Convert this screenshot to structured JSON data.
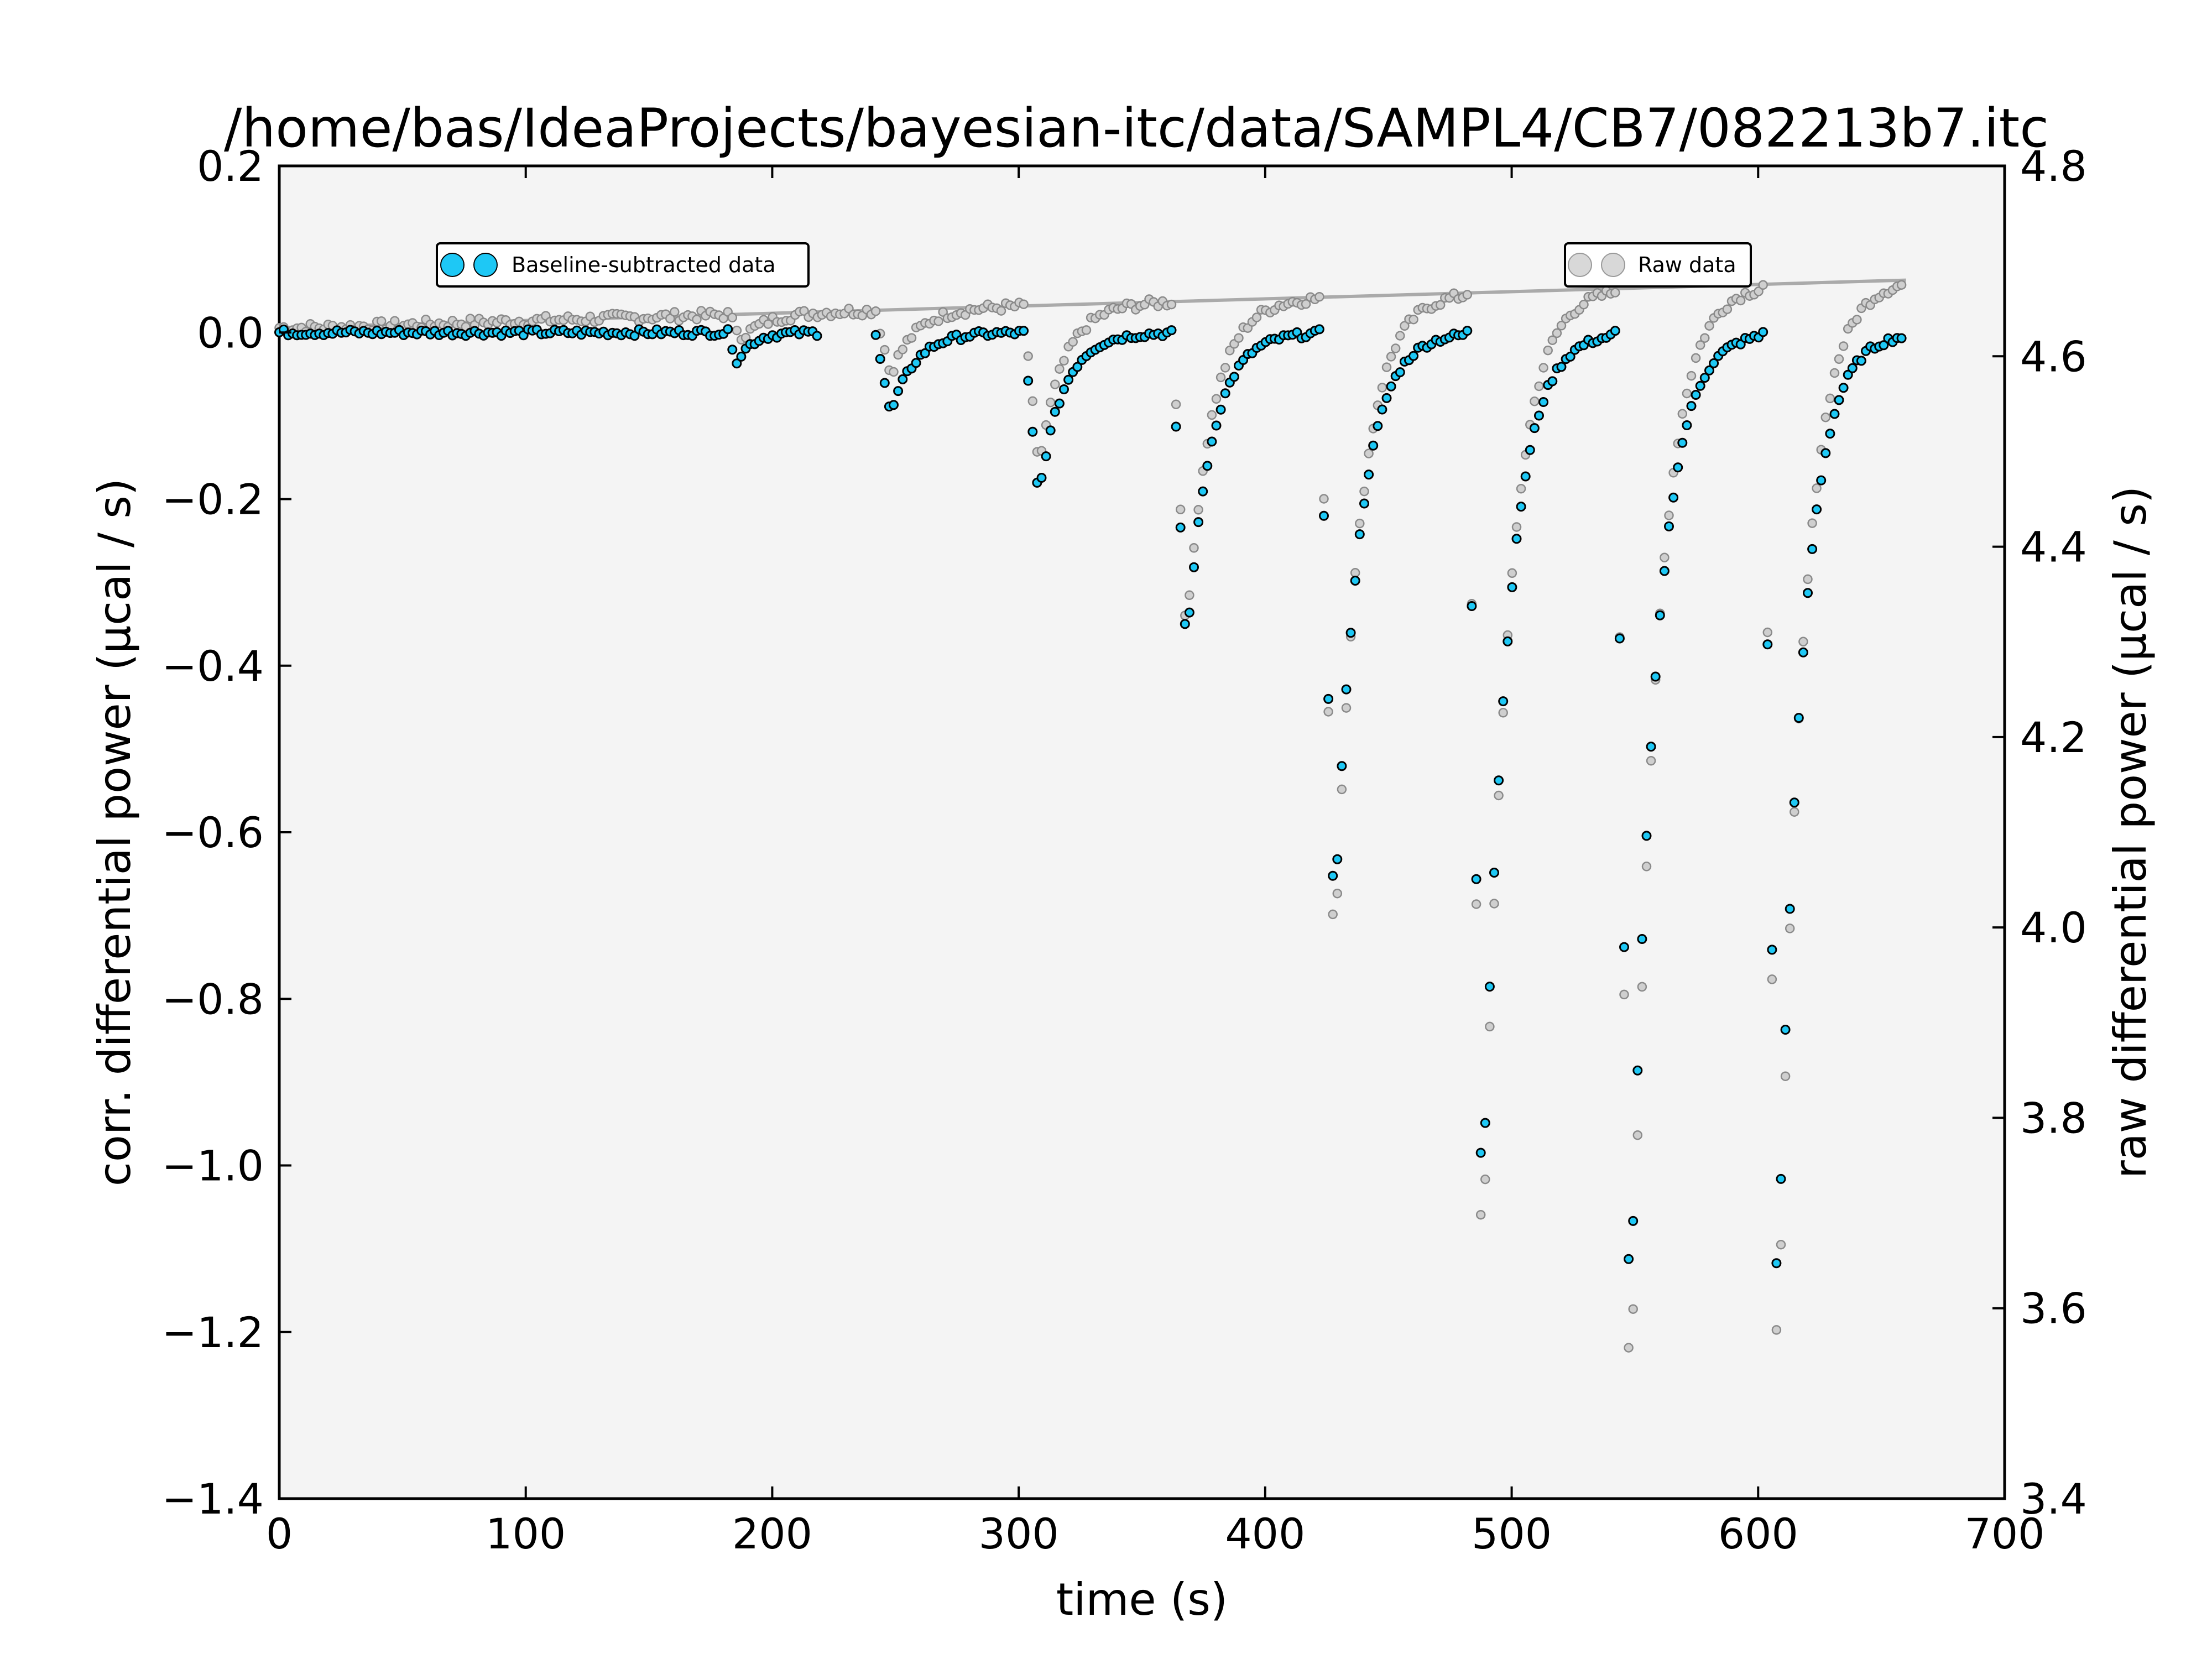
{
  "chart_data": {
    "type": "scatter",
    "title": "/home/bas/IdeaProjects/bayesian-itc/data/SAMPL4/CB7/082213b7.itc",
    "xlabel": "time (s)",
    "ylabel_left": "corr. differential power (µcal / s)",
    "ylabel_right": "raw differential power (µcal / s)",
    "xlim": [
      0,
      700
    ],
    "ylim_left": [
      -1.4,
      0.2
    ],
    "ylim_right": [
      3.4,
      4.8
    ],
    "x_ticks": [
      "0",
      "100",
      "200",
      "300",
      "400",
      "500",
      "600",
      "700"
    ],
    "y_left_ticks": [
      "0.2",
      "0.0",
      "−0.2",
      "−0.4",
      "−0.6",
      "−0.8",
      "−1.0",
      "−1.2",
      "−1.4"
    ],
    "y_right_ticks": [
      "4.8",
      "4.6",
      "4.4",
      "4.2",
      "4.0",
      "3.8",
      "3.6",
      "3.4"
    ],
    "grid": false,
    "series": [
      {
        "name": "Baseline-subtracted data",
        "axis": "left",
        "color": "#1ec8f5",
        "segments": [
          {
            "start": 0,
            "end": 182,
            "base": 0.0,
            "peak": 0.0
          },
          {
            "start": 182,
            "end": 220,
            "base": 0.0,
            "peak": -0.035
          },
          {
            "start": 242,
            "end": 302,
            "base": 0.0,
            "peak": -0.1
          },
          {
            "start": 302,
            "end": 362,
            "base": 0.0,
            "peak": -0.2
          },
          {
            "start": 362,
            "end": 422,
            "base": 0.0,
            "peak": -0.385
          },
          {
            "start": 422,
            "end": 482,
            "base": 0.0,
            "peak": -0.72
          },
          {
            "start": 482,
            "end": 542,
            "base": 0.0,
            "peak": -1.08
          },
          {
            "start": 542,
            "end": 602,
            "base": 0.0,
            "peak": -1.22
          },
          {
            "start": 602,
            "end": 660,
            "base": 0.0,
            "peak": -1.19
          }
        ]
      },
      {
        "name": "Raw data",
        "axis": "right",
        "color": "#aaaaaa",
        "baseline_start": 4.63,
        "baseline_end": 4.68,
        "segments": [
          {
            "start": 0,
            "end": 182,
            "peak": 4.63
          },
          {
            "start": 182,
            "end": 242,
            "peak": 4.62
          },
          {
            "start": 242,
            "end": 302,
            "peak": 4.58
          },
          {
            "start": 302,
            "end": 362,
            "peak": 4.48
          },
          {
            "start": 362,
            "end": 422,
            "peak": 4.3
          },
          {
            "start": 422,
            "end": 482,
            "peak": 3.95
          },
          {
            "start": 482,
            "end": 542,
            "peak": 3.6
          },
          {
            "start": 542,
            "end": 602,
            "peak": 3.45
          },
          {
            "start": 602,
            "end": 660,
            "peak": 3.5
          }
        ]
      }
    ],
    "legend_left": "top-left",
    "legend_right": "top-right"
  }
}
